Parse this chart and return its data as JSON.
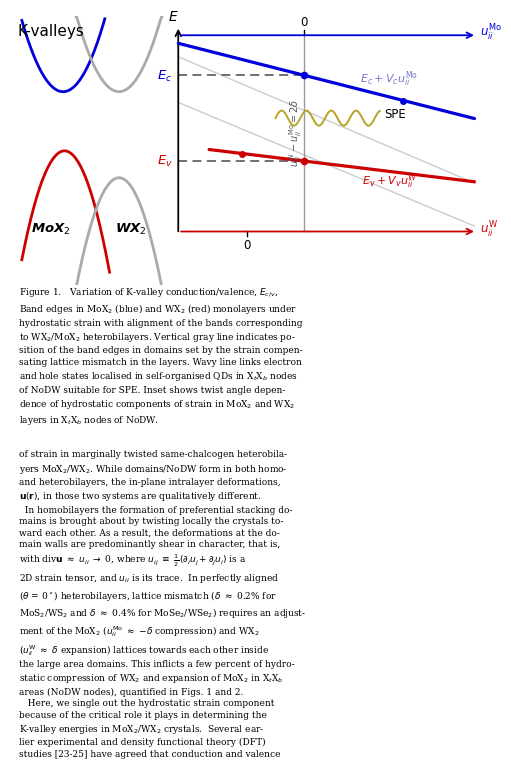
{
  "title": "K-valleys",
  "fig_width": 4.74,
  "fig_height": 6.11,
  "bg_color": "#ffffff",
  "conduction_color": "#0000dd",
  "valence_color": "#cc0000",
  "axis_color": "#000000",
  "dashed_color": "#666666",
  "gray_line_color": "#bbbbbb",
  "vertical_line_color": "#999999",
  "wavy_color": "#b8a428",
  "label_Ec_color": "#0000cc",
  "label_Ev_color": "#cc0000",
  "label_formula_c_color": "#7777cc",
  "SPE_color": "#000000",
  "caption1": "Figure 1.   Variation of K-valley conduction/valence, $E_{c/v}$,\nBand edges in MoX$_2$ (blue) and WX$_2$ (red) monolayers under\nhydrostatic strain with alignment of the bands corresponding\nto WX$_2$/MoX$_2$ heterobilayers. Vertical gray line indicates po-\nsition of the band edges in domains set by the strain compen-\nsating lattice mismatch in the layers. Wavy line links electron\nand hole states localised in self-organised QDs in X$_t$X$_b$ nodes\nof NoDW suitable for SPE. Inset shows twist angle depen-\ndence of hydrostatic components of strain in MoX$_2$ and WX$_2$\nlayers in X$_t$X$_b$ nodes of NoDW.",
  "caption2": "of strain in marginally twisted same-chalcogen heterobila-\nyers MoX$_2$/WX$_2$. While domains/NoDW form in both homo-\nand heterobilayers, the in-plane intralayer deformations,\n$\\mathbf{u}(\\mathbf{r})$, in those two systems are qualitatively different.\n  In homobilayers the formation of preferential stacking do-\nmains is brought about by twisting locally the crystals to-\nward each other. As a result, the deformations at the do-\nmain walls are predominantly shear in character, that is,\nwith div$\\mathbf{u}$ $\\approx$ $u_{ii}$ $\\rightarrow$ 0, where $u_{ij}$ $\\equiv$ $\\frac{1}{2}(\\partial_i u_j + \\partial_j u_i)$ is a\n2D strain tensor, and $u_{ii}$ is its trace.  In perfectly aligned\n($\\theta$ = 0$^\\circ$) heterobilayers, lattice mismatch ($\\delta$ $\\approx$ 0.2% for\nMoS$_2$/WS$_2$ and $\\delta$ $\\approx$ 0.4% for MoSe$_2$/WSe$_2$) requires an adjust-\nment of the MoX$_2$ ($u_{ii}^{\\rm Mo}$ $\\approx$ $-\\delta$ compression) and WX$_2$\n($u_{ii}^{\\rm W}$ $\\approx$ $\\delta$ expansion) lattices towards each other inside\nthe large area domains. This inflicts a few percent of hydro-\nstatic compression of WX$_2$ and expansion of MoX$_2$ in X$_t$X$_b$\nareas (NoDW nodes), quantified in Figs. 1 and 2.\n   Here, we single out the hydrostatic strain component\nbecause of the critical role it plays in determining the\nK-valley energies in MoX$_2$/WX$_2$ crystals.  Several ear-\nlier experimental and density functional theory (DFT)\nstudies [23-25] have agreed that conduction and valence"
}
